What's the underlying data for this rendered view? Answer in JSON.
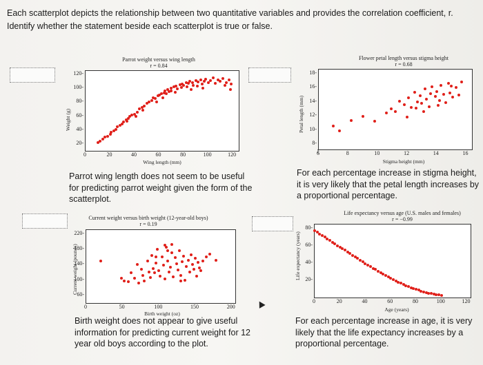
{
  "instructions": "Each scatterplot depicts the relationship between two quantitative variables and provides the correlation coefficient, r. Identify whether the statement beside each scatterplot is true or false.",
  "statements": [
    "Parrot wing length does not seem to be useful for predicting parrot weight given the form of the scatterplot.",
    "For each percentage increase in stigma height, it is very likely that the petal length increases by a proportional percentage.",
    "Birth weight does not appear to give useful information for predicting current weight for 12 year old boys according to the plot.",
    "For each percentage increase in age, it is very likely that the life expectancy increases by a proportional percentage."
  ],
  "plots": [
    {
      "title": "Parrot weight versus wing length",
      "r": "r = 0.84",
      "xlabel": "Wing length (mm)",
      "ylabel": "Weight (g)"
    },
    {
      "title": "Flower petal length versus stigma height",
      "r": "r = 0.68",
      "xlabel": "Stigma height (mm)",
      "ylabel": "Petal length (mm)"
    },
    {
      "title": "Current weight versus birth weight (12-year-old boys)",
      "r": "r = 0.19",
      "xlabel": "Birth weight (oz)",
      "ylabel": "Current weight (pounds)"
    },
    {
      "title": "Life expectancy versus age (U.S. males and females)",
      "r": "r = −0.99",
      "xlabel": "Age (years)",
      "ylabel": "Life expectancy (years)"
    }
  ],
  "chart_data": [
    {
      "type": "scatter",
      "title": "Parrot weight versus wing length",
      "subtitle": "r = 0.84",
      "xlabel": "Wing length (mm)",
      "ylabel": "Weight (g)",
      "xlim": [
        0,
        125
      ],
      "ylim": [
        10,
        125
      ],
      "xticks": [
        0,
        20,
        40,
        60,
        80,
        100,
        120
      ],
      "yticks": [
        20,
        40,
        60,
        80,
        100,
        120
      ],
      "color": "#e0201a",
      "points": [
        [
          10,
          22
        ],
        [
          12,
          24
        ],
        [
          14,
          27
        ],
        [
          16,
          30
        ],
        [
          18,
          31
        ],
        [
          20,
          34
        ],
        [
          21,
          37
        ],
        [
          23,
          39
        ],
        [
          25,
          41
        ],
        [
          26,
          45
        ],
        [
          28,
          47
        ],
        [
          30,
          49
        ],
        [
          31,
          52
        ],
        [
          33,
          55
        ],
        [
          35,
          57
        ],
        [
          36,
          60
        ],
        [
          38,
          62
        ],
        [
          40,
          63
        ],
        [
          42,
          66
        ],
        [
          44,
          70
        ],
        [
          46,
          72
        ],
        [
          48,
          74
        ],
        [
          50,
          78
        ],
        [
          52,
          80
        ],
        [
          54,
          82
        ],
        [
          55,
          86
        ],
        [
          57,
          85
        ],
        [
          59,
          89
        ],
        [
          60,
          90
        ],
        [
          62,
          92
        ],
        [
          64,
          93
        ],
        [
          65,
          96
        ],
        [
          67,
          98
        ],
        [
          68,
          95
        ],
        [
          70,
          100
        ],
        [
          72,
          102
        ],
        [
          74,
          103
        ],
        [
          75,
          99
        ],
        [
          77,
          105
        ],
        [
          79,
          106
        ],
        [
          80,
          104
        ],
        [
          82,
          108
        ],
        [
          84,
          107
        ],
        [
          85,
          110
        ],
        [
          87,
          108
        ],
        [
          88,
          104
        ],
        [
          90,
          111
        ],
        [
          92,
          109
        ],
        [
          94,
          112
        ],
        [
          95,
          106
        ],
        [
          97,
          110
        ],
        [
          98,
          113
        ],
        [
          100,
          108
        ],
        [
          102,
          111
        ],
        [
          104,
          115
        ],
        [
          106,
          107
        ],
        [
          108,
          112
        ],
        [
          110,
          110
        ],
        [
          112,
          114
        ],
        [
          114,
          104
        ],
        [
          115,
          108
        ],
        [
          117,
          112
        ],
        [
          118,
          98
        ],
        [
          119,
          106
        ],
        [
          66,
          92
        ],
        [
          70,
          96
        ],
        [
          73,
          94
        ],
        [
          78,
          101
        ],
        [
          83,
          102
        ],
        [
          86,
          98
        ],
        [
          91,
          103
        ],
        [
          96,
          100
        ],
        [
          58,
          80
        ],
        [
          63,
          86
        ],
        [
          47,
          68
        ],
        [
          41,
          60
        ],
        [
          34,
          53
        ]
      ]
    },
    {
      "type": "scatter",
      "title": "Flower petal length versus stigma height",
      "subtitle": "r = 0.68",
      "xlabel": "Stigma height (mm)",
      "ylabel": "Petal length (mm)",
      "xlim": [
        6,
        16.4
      ],
      "ylim": [
        7.2,
        18.6
      ],
      "xticks": [
        6,
        8,
        10,
        12,
        14,
        16
      ],
      "yticks": [
        8,
        10,
        12,
        14,
        16,
        18
      ],
      "color": "#e0201a",
      "points": [
        [
          7.0,
          10.5
        ],
        [
          7.4,
          9.9
        ],
        [
          8.2,
          11.3
        ],
        [
          9.0,
          11.9
        ],
        [
          9.8,
          11.2
        ],
        [
          10.6,
          12.4
        ],
        [
          10.9,
          13.0
        ],
        [
          11.2,
          12.6
        ],
        [
          11.5,
          14.1
        ],
        [
          11.8,
          13.6
        ],
        [
          12.1,
          14.6
        ],
        [
          12.3,
          13.2
        ],
        [
          12.5,
          15.4
        ],
        [
          12.7,
          14.0
        ],
        [
          12.9,
          14.9
        ],
        [
          13.0,
          13.8
        ],
        [
          13.2,
          15.8
        ],
        [
          13.3,
          14.4
        ],
        [
          13.5,
          13.3
        ],
        [
          13.7,
          16.1
        ],
        [
          13.9,
          14.8
        ],
        [
          14.0,
          15.5
        ],
        [
          14.2,
          14.2
        ],
        [
          14.3,
          16.3
        ],
        [
          14.5,
          15.1
        ],
        [
          14.6,
          13.9
        ],
        [
          14.8,
          16.6
        ],
        [
          14.9,
          15.3
        ],
        [
          15.1,
          14.7
        ],
        [
          15.3,
          16.0
        ],
        [
          15.5,
          15.0
        ],
        [
          15.7,
          16.8
        ],
        [
          13.1,
          12.6
        ],
        [
          12.0,
          11.8
        ],
        [
          14.1,
          13.5
        ],
        [
          15.0,
          16.2
        ],
        [
          13.6,
          15.2
        ],
        [
          12.6,
          13.1
        ]
      ]
    },
    {
      "type": "scatter",
      "title": "Current weight versus birth weight (12-year-old boys)",
      "subtitle": "r = 0.19",
      "xlabel": "Birth weight (oz)",
      "ylabel": "Current weight (pounds)",
      "xlim": [
        0,
        205
      ],
      "ylim": [
        40,
        230
      ],
      "xticks": [
        0,
        50,
        100,
        150,
        200
      ],
      "yticks": [
        60,
        100,
        140,
        180,
        220
      ],
      "color": "#e0201a",
      "points": [
        [
          20,
          150
        ],
        [
          48,
          105
        ],
        [
          52,
          98
        ],
        [
          58,
          96
        ],
        [
          62,
          118
        ],
        [
          66,
          104
        ],
        [
          70,
          140
        ],
        [
          72,
          92
        ],
        [
          76,
          128
        ],
        [
          78,
          112
        ],
        [
          80,
          98
        ],
        [
          84,
          150
        ],
        [
          86,
          120
        ],
        [
          88,
          106
        ],
        [
          90,
          164
        ],
        [
          92,
          130
        ],
        [
          94,
          118
        ],
        [
          96,
          144
        ],
        [
          98,
          180
        ],
        [
          100,
          125
        ],
        [
          102,
          110
        ],
        [
          104,
          160
        ],
        [
          106,
          138
        ],
        [
          108,
          102
        ],
        [
          110,
          186
        ],
        [
          112,
          150
        ],
        [
          114,
          120
        ],
        [
          116,
          134
        ],
        [
          118,
          170
        ],
        [
          120,
          108
        ],
        [
          122,
          158
        ],
        [
          124,
          142
        ],
        [
          126,
          126
        ],
        [
          128,
          176
        ],
        [
          130,
          112
        ],
        [
          132,
          148
        ],
        [
          134,
          162
        ],
        [
          136,
          100
        ],
        [
          138,
          135
        ],
        [
          140,
          152
        ],
        [
          142,
          120
        ],
        [
          144,
          166
        ],
        [
          146,
          140
        ],
        [
          148,
          128
        ],
        [
          150,
          156
        ],
        [
          152,
          110
        ],
        [
          154,
          146
        ],
        [
          156,
          132
        ],
        [
          158,
          124
        ],
        [
          160,
          150
        ],
        [
          165,
          160
        ],
        [
          170,
          168
        ],
        [
          178,
          152
        ],
        [
          108,
          190
        ],
        [
          118,
          192
        ],
        [
          96,
          160
        ],
        [
          130,
          98
        ],
        [
          112,
          176
        ]
      ]
    },
    {
      "type": "scatter",
      "title": "Life expectancy versus age (U.S. males and females)",
      "subtitle": "r = −0.99",
      "xlabel": "Age (years)",
      "ylabel": "Life expectancy (years)",
      "xlim": [
        0,
        123
      ],
      "ylim": [
        0,
        85
      ],
      "xticks": [
        0,
        20,
        40,
        60,
        80,
        100,
        120
      ],
      "yticks": [
        20,
        40,
        60,
        80
      ],
      "color": "#e0201a",
      "points": [
        [
          0,
          78
        ],
        [
          2,
          76
        ],
        [
          4,
          74
        ],
        [
          6,
          72.5
        ],
        [
          8,
          70.5
        ],
        [
          10,
          68.5
        ],
        [
          12,
          66.5
        ],
        [
          14,
          64.5
        ],
        [
          16,
          62.5
        ],
        [
          18,
          60.5
        ],
        [
          20,
          58.5
        ],
        [
          22,
          57
        ],
        [
          24,
          55
        ],
        [
          26,
          53
        ],
        [
          28,
          51
        ],
        [
          30,
          49
        ],
        [
          32,
          47
        ],
        [
          34,
          45.5
        ],
        [
          36,
          43.5
        ],
        [
          38,
          41.5
        ],
        [
          40,
          39.5
        ],
        [
          42,
          38
        ],
        [
          44,
          36
        ],
        [
          46,
          34
        ],
        [
          48,
          32.5
        ],
        [
          50,
          30.5
        ],
        [
          52,
          29
        ],
        [
          54,
          27
        ],
        [
          56,
          25.5
        ],
        [
          58,
          24
        ],
        [
          60,
          22.5
        ],
        [
          62,
          21
        ],
        [
          64,
          19.5
        ],
        [
          66,
          18
        ],
        [
          68,
          16.5
        ],
        [
          70,
          15
        ],
        [
          72,
          13.5
        ],
        [
          74,
          12.5
        ],
        [
          76,
          11.5
        ],
        [
          78,
          10.5
        ],
        [
          80,
          9.5
        ],
        [
          82,
          8.5
        ],
        [
          84,
          7.5
        ],
        [
          86,
          6.5
        ],
        [
          88,
          6
        ],
        [
          90,
          5
        ],
        [
          92,
          4.5
        ],
        [
          94,
          4
        ],
        [
          96,
          3.5
        ],
        [
          98,
          3
        ],
        [
          100,
          2.5
        ]
      ]
    }
  ]
}
